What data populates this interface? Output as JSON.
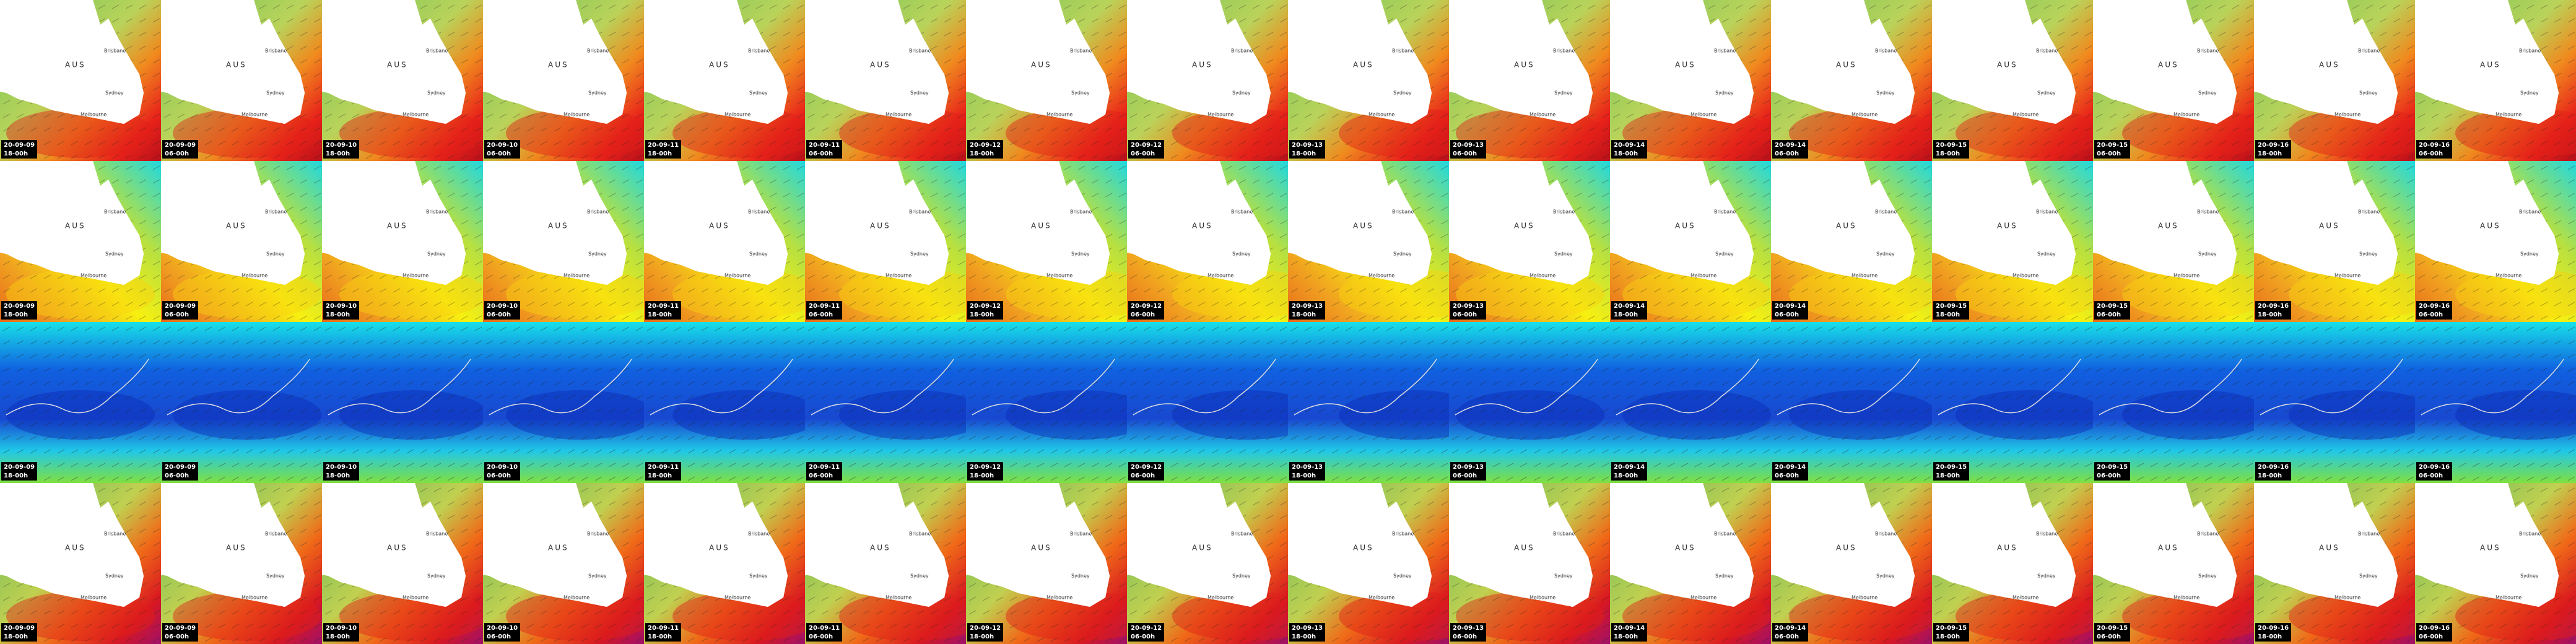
{
  "tiles": {
    "dates": [
      "20-09-09",
      "20-09-09",
      "20-09-10",
      "20-09-10",
      "20-09-11",
      "20-09-11",
      "20-09-12",
      "20-09-12",
      "20-09-13",
      "20-09-13",
      "20-09-14",
      "20-09-14",
      "20-09-15",
      "20-09-15",
      "20-09-16",
      "20-09-16"
    ],
    "times": [
      "18-00h",
      "06-00h",
      "18-00h",
      "06-00h",
      "18-00h",
      "06-00h",
      "18-00h",
      "06-00h",
      "18-00h",
      "06-00h",
      "18-00h",
      "06-00h",
      "18-00h",
      "06-00h",
      "18-00h",
      "06-00h"
    ]
  },
  "place_labels": [
    "AUS",
    "Brisbane",
    "Sydney",
    "Melbourne"
  ]
}
